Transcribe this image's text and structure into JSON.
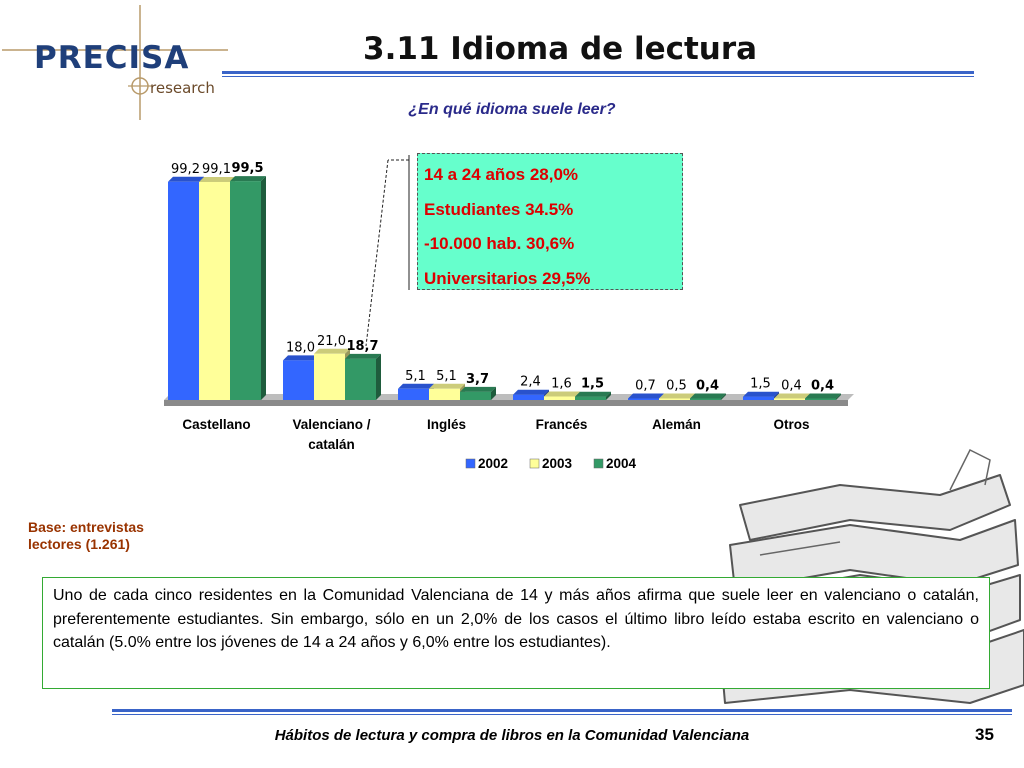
{
  "header": {
    "logo_text": "PRECISA",
    "logo_subtext": "research",
    "title": "3.11 Idioma de lectura",
    "question": "¿En qué idioma suele leer?"
  },
  "chart_data": {
    "type": "bar",
    "style": "3d-clustered",
    "categories": [
      "Castellano",
      "Valenciano / catalán",
      "Inglés",
      "Francés",
      "Alemán",
      "Otros"
    ],
    "category_lines": [
      [
        "Castellano"
      ],
      [
        "Valenciano /",
        "catalán"
      ],
      [
        "Inglés"
      ],
      [
        "Francés"
      ],
      [
        "Alemán"
      ],
      [
        "Otros"
      ]
    ],
    "series": [
      {
        "name": "2002",
        "color": "#3366ff",
        "values": [
          99.2,
          18.0,
          5.1,
          2.4,
          0.7,
          1.5
        ],
        "labels": [
          "99,2",
          "18,0",
          "5,1",
          "2,4",
          "0,7",
          "1,5"
        ],
        "bold": false
      },
      {
        "name": "2003",
        "color": "#ffff99",
        "values": [
          99.1,
          21.0,
          5.1,
          1.6,
          0.5,
          0.4
        ],
        "labels": [
          "99,1",
          "21,0",
          "5,1",
          "1,6",
          "0,5",
          "0,4"
        ],
        "bold": false
      },
      {
        "name": "2004",
        "color": "#339966",
        "values": [
          99.5,
          18.7,
          3.7,
          1.5,
          0.4,
          0.4
        ],
        "labels": [
          "99,5",
          "18,7",
          "3,7",
          "1,5",
          "0,4",
          "0,4"
        ],
        "bold": true
      }
    ],
    "ylim": [
      0,
      100
    ],
    "legend_position": "bottom",
    "grid": false
  },
  "callout": {
    "lines": [
      "14 a 24 años 28,0%",
      "Estudiantes 34.5%",
      "-10.000 hab. 30,6%",
      "Universitarios 29,5%"
    ],
    "background": "#66ffcc",
    "text_color": "#dd0000"
  },
  "base_note": "Base: entrevistas lectores (1.261)",
  "summary_text": "Uno de cada cinco residentes en la Comunidad Valenciana de 14 y más años afirma que suele leer en valenciano o catalán, preferentemente estudiantes. Sin embargo, sólo en un 2,0% de los casos el último libro leído estaba escrito en valenciano o catalán (5.0% entre los jóvenes de 14 a 24 años y 6,0% entre los estudiantes).",
  "footer": {
    "text": "Hábitos de lectura y compra de libros en la Comunidad Valenciana",
    "page_number": "35"
  },
  "colors": {
    "accent_rule": "#3a64c8",
    "logo_blue": "#1f3f7a",
    "note_color": "#993300",
    "textbox_border": "#33aa33"
  },
  "icons": {
    "logo_mark": "compass-cross-icon",
    "illustration": "book-stack-icon"
  }
}
